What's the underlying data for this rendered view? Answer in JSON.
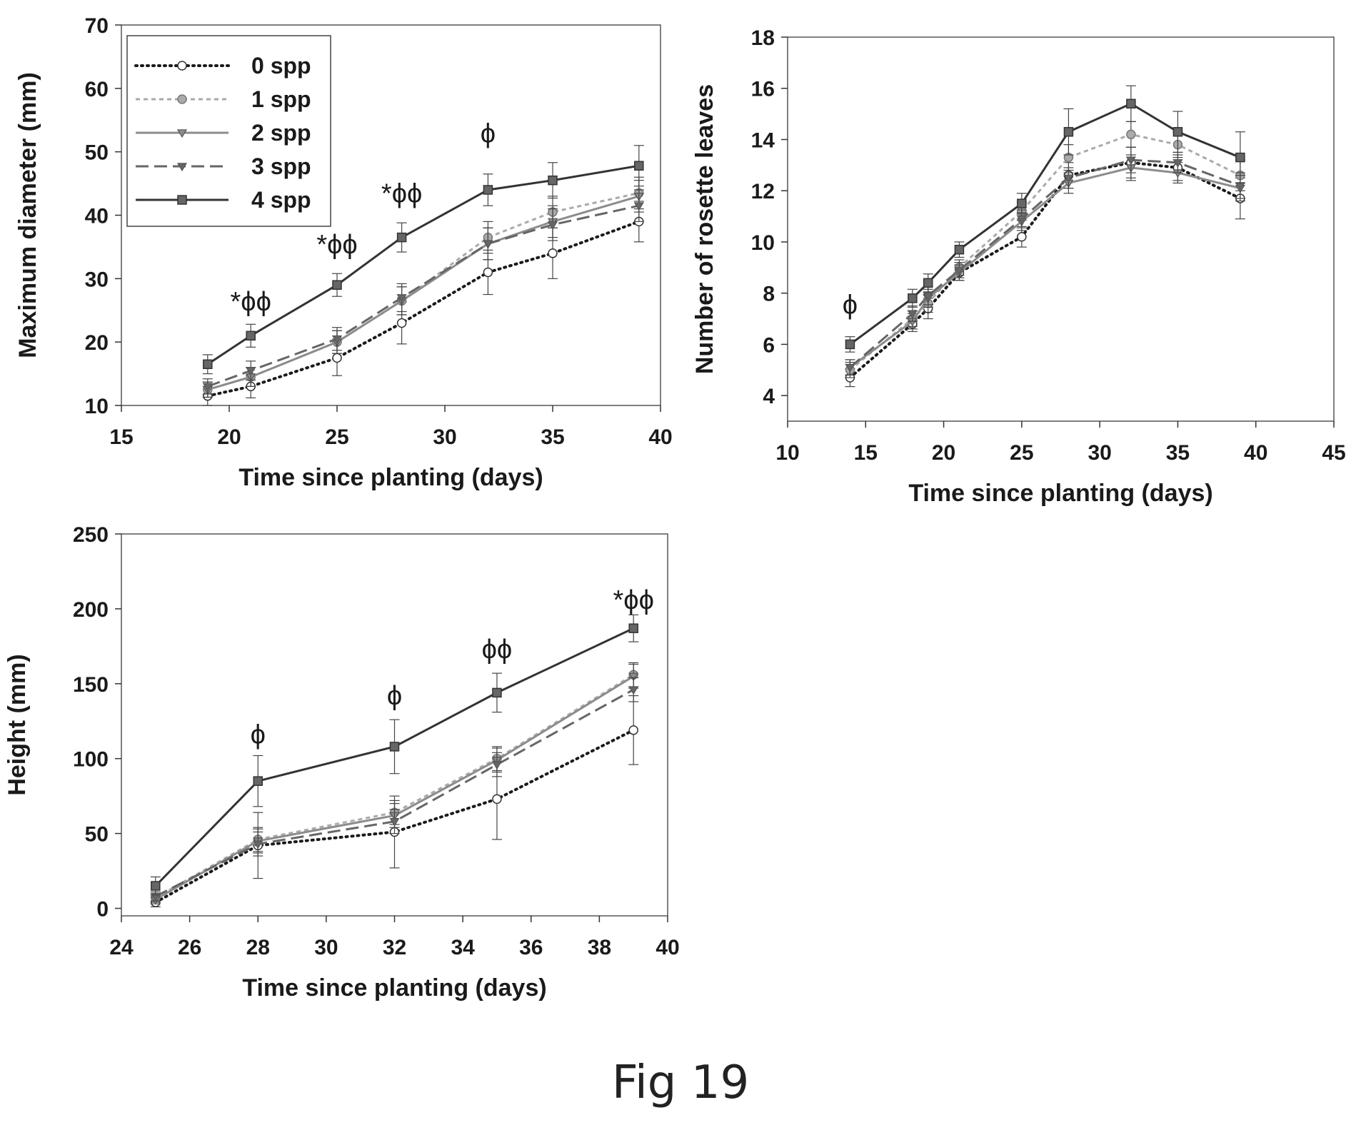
{
  "figure_caption": "Fig 19",
  "legend": {
    "entries": [
      {
        "label": "0 spp",
        "color": "#1a1a1a",
        "dash": "2,6",
        "marker": "circle",
        "fill": "#ffffff"
      },
      {
        "label": "1 spp",
        "color": "#aaaaaa",
        "dash": "6,5",
        "marker": "circle",
        "fill": "#aaaaaa"
      },
      {
        "label": "2 spp",
        "color": "#8c8c8c",
        "dash": "",
        "marker": "triangle",
        "fill": "#8c8c8c"
      },
      {
        "label": "3 spp",
        "color": "#666666",
        "dash": "18,8",
        "marker": "triangle",
        "fill": "#666666"
      },
      {
        "label": "4 spp",
        "color": "#333333",
        "dash": "",
        "marker": "square",
        "fill": "#666666"
      }
    ]
  },
  "chart_data": [
    {
      "id": "diameter",
      "type": "line",
      "xlabel": "Time since planting (days)",
      "ylabel": "Maximum diameter (mm)",
      "xlim": [
        15,
        40
      ],
      "ylim": [
        10,
        70
      ],
      "xticks": [
        15,
        20,
        25,
        30,
        35,
        40
      ],
      "yticks": [
        10,
        20,
        30,
        40,
        50,
        60,
        70
      ],
      "x": [
        19,
        21,
        25,
        28,
        32,
        35,
        39
      ],
      "series": [
        {
          "name": "0 spp",
          "values": [
            11.5,
            13,
            17.5,
            23,
            31,
            34,
            39
          ],
          "err": [
            1.5,
            1.8,
            2.8,
            3.3,
            3.5,
            4,
            3.2
          ]
        },
        {
          "name": "1 spp",
          "values": [
            12.5,
            14.5,
            20,
            26.5,
            36.5,
            40.5,
            43.5
          ],
          "err": [
            1.2,
            1.5,
            1.8,
            2.2,
            2.5,
            2.5,
            2.5
          ]
        },
        {
          "name": "2 spp",
          "values": [
            12.5,
            14.5,
            20,
            26.5,
            35.5,
            39,
            43
          ],
          "err": [
            1.2,
            1.5,
            1.8,
            2.2,
            2.5,
            2.5,
            2.5
          ]
        },
        {
          "name": "3 spp",
          "values": [
            13,
            15.5,
            20.5,
            27,
            35.5,
            38.5,
            41.5
          ],
          "err": [
            1.2,
            1.5,
            1.8,
            2.2,
            2.5,
            2.5,
            2.5
          ]
        },
        {
          "name": "4 spp",
          "values": [
            16.5,
            21,
            29,
            36.5,
            44,
            45.5,
            47.8
          ],
          "err": [
            1.5,
            1.8,
            1.8,
            2.3,
            2.5,
            2.8,
            3.2
          ]
        }
      ],
      "annotations": [
        {
          "x": 21,
          "y": 25,
          "text": "*ϕϕ"
        },
        {
          "x": 25,
          "y": 34,
          "text": "*ϕϕ"
        },
        {
          "x": 28,
          "y": 42,
          "text": "*ϕϕ"
        },
        {
          "x": 32,
          "y": 51.5,
          "text": "ϕ"
        }
      ]
    },
    {
      "id": "leaves",
      "type": "line",
      "xlabel": "Time since planting (days)",
      "ylabel": "Number of rosette leaves",
      "xlim": [
        10,
        45
      ],
      "ylim": [
        3,
        18
      ],
      "xticks": [
        10,
        15,
        20,
        25,
        30,
        35,
        40,
        45
      ],
      "yticks": [
        4,
        6,
        8,
        10,
        12,
        14,
        16,
        18
      ],
      "x": [
        14,
        18,
        19,
        21,
        25,
        28,
        32,
        35,
        39
      ],
      "series": [
        {
          "name": "0 spp",
          "values": [
            4.7,
            6.8,
            7.4,
            8.8,
            10.2,
            12.6,
            13.1,
            12.9,
            11.7
          ],
          "err": [
            0.35,
            0.3,
            0.4,
            0.3,
            0.4,
            0.5,
            0.6,
            0.5,
            0.8
          ]
        },
        {
          "name": "1 spp",
          "values": [
            5,
            7,
            7.6,
            9,
            11.2,
            13.3,
            14.2,
            13.8,
            12.6
          ],
          "err": [
            0.3,
            0.3,
            0.35,
            0.3,
            0.35,
            0.5,
            0.5,
            0.5,
            0.6
          ]
        },
        {
          "name": "2 spp",
          "values": [
            5.1,
            6.9,
            7.8,
            8.8,
            10.8,
            12.3,
            12.9,
            12.7,
            12.1
          ],
          "err": [
            0.3,
            0.3,
            0.35,
            0.3,
            0.35,
            0.4,
            0.5,
            0.4,
            0.5
          ]
        },
        {
          "name": "3 spp",
          "values": [
            5.1,
            7.2,
            7.9,
            8.9,
            10.9,
            12.5,
            13.2,
            13.1,
            12.2
          ],
          "err": [
            0.3,
            0.3,
            0.35,
            0.3,
            0.35,
            0.4,
            0.5,
            0.4,
            0.5
          ]
        },
        {
          "name": "4 spp",
          "values": [
            6,
            7.8,
            8.4,
            9.7,
            11.5,
            14.3,
            15.4,
            14.3,
            13.3
          ],
          "err": [
            0.3,
            0.35,
            0.35,
            0.3,
            0.4,
            0.9,
            0.7,
            0.8,
            1.0
          ]
        }
      ],
      "annotations": [
        {
          "x": 14,
          "y": 7.2,
          "text": "ϕ"
        }
      ]
    },
    {
      "id": "height",
      "type": "line",
      "xlabel": "Time since planting (days)",
      "ylabel": "Height (mm)",
      "xlim": [
        24,
        40
      ],
      "ylim": [
        -5,
        250
      ],
      "xticks": [
        24,
        26,
        28,
        30,
        32,
        34,
        36,
        38,
        40
      ],
      "yticks": [
        0,
        50,
        100,
        150,
        200,
        250
      ],
      "x": [
        25,
        28,
        32,
        35,
        39
      ],
      "series": [
        {
          "name": "0 spp",
          "values": [
            4,
            42,
            51,
            73,
            119
          ],
          "err": [
            3,
            22,
            24,
            27,
            23
          ]
        },
        {
          "name": "1 spp",
          "values": [
            7,
            46,
            64,
            100,
            156
          ],
          "err": [
            3,
            8,
            8,
            8,
            8
          ]
        },
        {
          "name": "2 spp",
          "values": [
            6,
            45,
            62,
            99,
            155
          ],
          "err": [
            3,
            8,
            8,
            8,
            8
          ]
        },
        {
          "name": "3 spp",
          "values": [
            8,
            43,
            58,
            96,
            146
          ],
          "err": [
            3,
            8,
            8,
            8,
            8
          ]
        },
        {
          "name": "4 spp",
          "values": [
            15,
            85,
            108,
            144,
            187
          ],
          "err": [
            6,
            17,
            18,
            13,
            9
          ]
        }
      ],
      "annotations": [
        {
          "x": 28,
          "y": 110,
          "text": "ϕ"
        },
        {
          "x": 32,
          "y": 136,
          "text": "ϕ"
        },
        {
          "x": 35,
          "y": 167,
          "text": "ϕϕ"
        },
        {
          "x": 39,
          "y": 200,
          "text": "*ϕϕ"
        }
      ]
    }
  ]
}
